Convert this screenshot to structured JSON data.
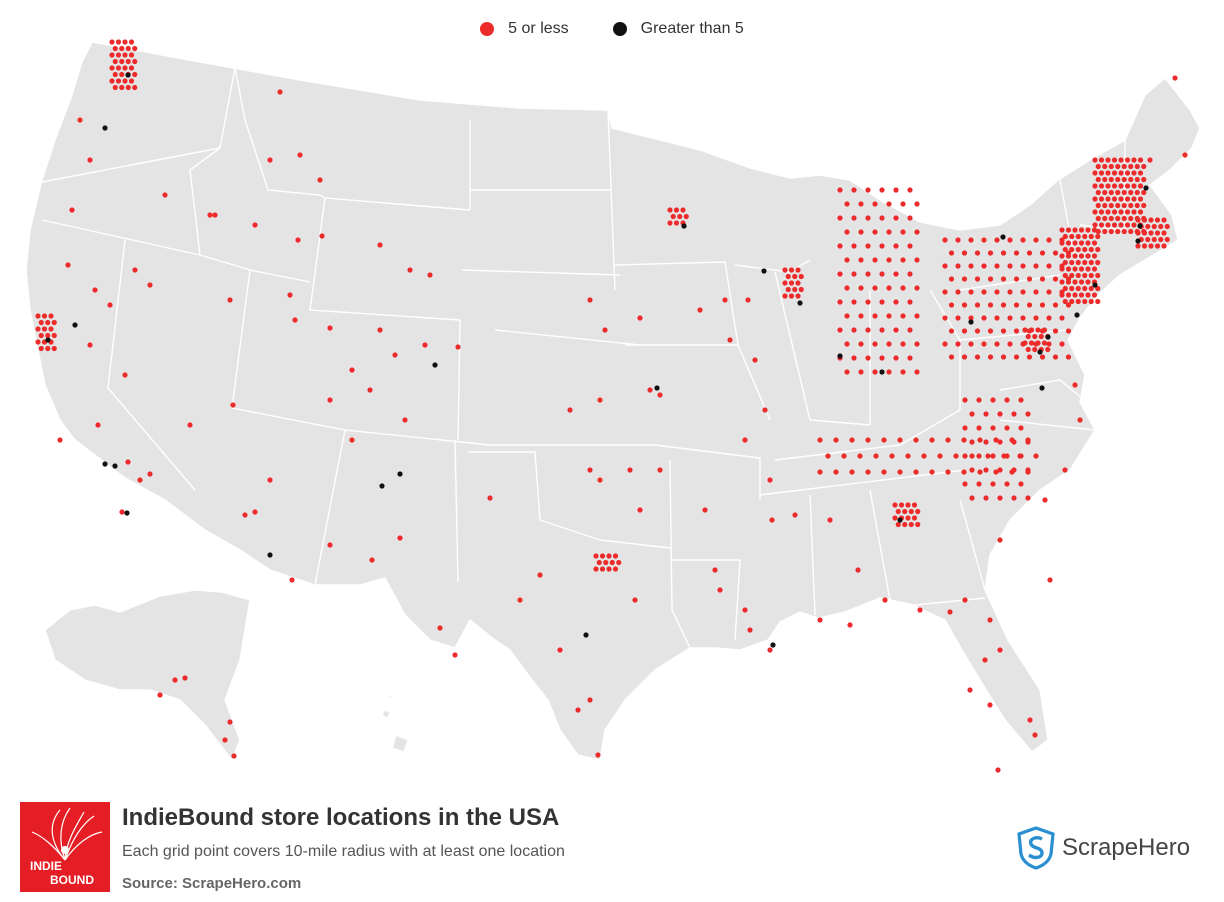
{
  "legend": [
    {
      "label": "5 or less",
      "color": "#ee2b2b"
    },
    {
      "label": "Greater than 5",
      "color": "#111111"
    }
  ],
  "footer": {
    "title": "IndieBound store locations in the USA",
    "subtitle": "Each grid point covers 10-mile radius with at least one location",
    "source": "Source: ScrapeHero.com",
    "logo_text": "INDIE BOUND",
    "brand": "ScrapeHero"
  },
  "colors": {
    "land": "#e4e4e4",
    "border": "#ffffff",
    "low": "#ee2b2b",
    "high": "#111111",
    "logo_bg": "#e51e25",
    "brand_blue": "#2a8fd1"
  }
}
